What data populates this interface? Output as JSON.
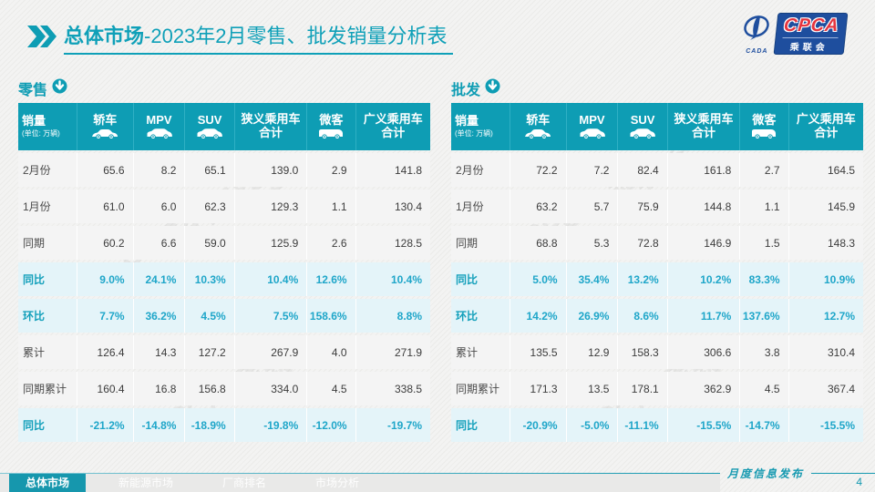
{
  "title": {
    "bold": "总体市场",
    "rest": "-2023年2月零售、批发销量分析表"
  },
  "logo": {
    "cpca": "CPCA",
    "association": "乘联会",
    "cada": "CADA"
  },
  "unit_note_line1": "销量",
  "unit_note_line2": "(单位: 万辆)",
  "columns": [
    {
      "label": "销量",
      "sub": "(单位: 万辆)",
      "icon": null
    },
    {
      "label": "轿车",
      "icon": "sedan-car-icon"
    },
    {
      "label": "MPV",
      "icon": "mpv-car-icon"
    },
    {
      "label": "SUV",
      "icon": "suv-car-icon"
    },
    {
      "label": "狭义乘用车",
      "label2": "合计",
      "icon": null
    },
    {
      "label": "微客",
      "icon": "minivan-icon"
    },
    {
      "label": "广义乘用车",
      "label2": "合计",
      "icon": null
    }
  ],
  "chart_data": [
    {
      "type": "table",
      "title": "零售",
      "columns": [
        "轿车",
        "MPV",
        "SUV",
        "狭义乘用车合计",
        "微客",
        "广义乘用车合计"
      ],
      "rows": [
        {
          "label": "2月份",
          "type": "normal",
          "values": [
            "65.6",
            "8.2",
            "65.1",
            "139.0",
            "2.9",
            "141.8"
          ]
        },
        {
          "label": "1月份",
          "type": "normal",
          "values": [
            "61.0",
            "6.0",
            "62.3",
            "129.3",
            "1.1",
            "130.4"
          ]
        },
        {
          "label": "同期",
          "type": "normal",
          "values": [
            "60.2",
            "6.6",
            "59.0",
            "125.9",
            "2.6",
            "128.5"
          ]
        },
        {
          "label": "同比",
          "type": "percent",
          "values": [
            "9.0%",
            "24.1%",
            "10.3%",
            "10.4%",
            "12.6%",
            "10.4%"
          ]
        },
        {
          "label": "环比",
          "type": "percent",
          "values": [
            "7.7%",
            "36.2%",
            "4.5%",
            "7.5%",
            "158.6%",
            "8.8%"
          ]
        },
        {
          "label": "累计",
          "type": "normal",
          "values": [
            "126.4",
            "14.3",
            "127.2",
            "267.9",
            "4.0",
            "271.9"
          ]
        },
        {
          "label": "同期累计",
          "type": "normal",
          "values": [
            "160.4",
            "16.8",
            "156.8",
            "334.0",
            "4.5",
            "338.5"
          ]
        },
        {
          "label": "同比",
          "type": "percent",
          "values": [
            "-21.2%",
            "-14.8%",
            "-18.9%",
            "-19.8%",
            "-12.0%",
            "-19.7%"
          ]
        }
      ]
    },
    {
      "type": "table",
      "title": "批发",
      "columns": [
        "轿车",
        "MPV",
        "SUV",
        "狭义乘用车合计",
        "微客",
        "广义乘用车合计"
      ],
      "rows": [
        {
          "label": "2月份",
          "type": "normal",
          "values": [
            "72.2",
            "7.2",
            "82.4",
            "161.8",
            "2.7",
            "164.5"
          ]
        },
        {
          "label": "1月份",
          "type": "normal",
          "values": [
            "63.2",
            "5.7",
            "75.9",
            "144.8",
            "1.1",
            "145.9"
          ]
        },
        {
          "label": "同期",
          "type": "normal",
          "values": [
            "68.8",
            "5.3",
            "72.8",
            "146.9",
            "1.5",
            "148.3"
          ]
        },
        {
          "label": "同比",
          "type": "percent",
          "values": [
            "5.0%",
            "35.4%",
            "13.2%",
            "10.2%",
            "83.3%",
            "10.9%"
          ]
        },
        {
          "label": "环比",
          "type": "percent",
          "values": [
            "14.2%",
            "26.9%",
            "8.6%",
            "11.7%",
            "137.6%",
            "12.7%"
          ]
        },
        {
          "label": "累计",
          "type": "normal",
          "values": [
            "135.5",
            "12.9",
            "158.3",
            "306.6",
            "3.8",
            "310.4"
          ]
        },
        {
          "label": "同期累计",
          "type": "normal",
          "values": [
            "171.3",
            "13.5",
            "178.1",
            "362.9",
            "4.5",
            "367.4"
          ]
        },
        {
          "label": "同比",
          "type": "percent",
          "values": [
            "-20.9%",
            "-5.0%",
            "-11.1%",
            "-15.5%",
            "-14.7%",
            "-15.5%"
          ]
        }
      ]
    }
  ],
  "footer": {
    "tabs": [
      {
        "label": "总体市场",
        "active": true
      },
      {
        "label": "新能源市场",
        "active": false
      },
      {
        "label": "厂商排名",
        "active": false
      },
      {
        "label": "市场分析",
        "active": false
      }
    ],
    "publish_label": "月度信息发布",
    "page_number": "4"
  },
  "colors": {
    "teal": "#0e9db4",
    "title_teal": "#0fa0b8",
    "percent_blue": "#1fa6c9",
    "light_blue_row": "#e4f4f9",
    "logo_blue": "#1e4e9e",
    "logo_red": "#e5353f"
  }
}
